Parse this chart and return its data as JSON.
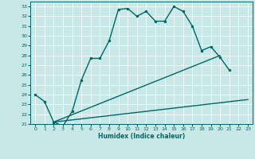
{
  "xlabel": "Humidex (Indice chaleur)",
  "background_color": "#c8e8e8",
  "line_color": "#006666",
  "grid_color": "#ffffff",
  "xlim": [
    -0.5,
    23.5
  ],
  "ylim": [
    21,
    33.5
  ],
  "yticks": [
    21,
    22,
    23,
    24,
    25,
    26,
    27,
    28,
    29,
    30,
    31,
    32,
    33
  ],
  "xticks": [
    0,
    1,
    2,
    3,
    4,
    5,
    6,
    7,
    8,
    9,
    10,
    11,
    12,
    13,
    14,
    15,
    16,
    17,
    18,
    19,
    20,
    21,
    22,
    23
  ],
  "curve1_x": [
    0,
    1,
    2,
    3,
    4,
    5,
    6,
    7,
    8,
    9,
    10,
    11,
    12,
    13,
    14,
    15,
    16,
    17,
    18,
    19,
    20,
    21
  ],
  "curve1_y": [
    24.0,
    23.3,
    21.2,
    20.8,
    22.3,
    25.5,
    27.7,
    27.7,
    29.5,
    32.7,
    32.8,
    32.0,
    32.5,
    31.5,
    31.5,
    33.0,
    32.5,
    31.0,
    28.5,
    28.9,
    27.8,
    26.5
  ],
  "line1_x": [
    2,
    20
  ],
  "line1_y": [
    21.2,
    28.0
  ],
  "line2_x": [
    2,
    23
  ],
  "line2_y": [
    21.2,
    23.5
  ],
  "marker_size": 2.5,
  "linewidth": 1.0
}
